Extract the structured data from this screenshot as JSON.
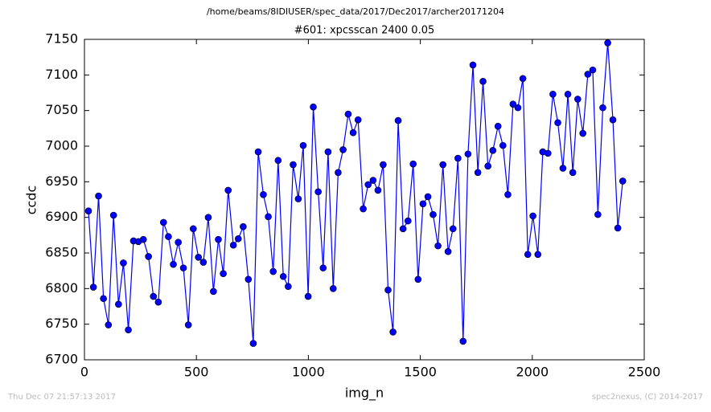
{
  "header": "/home/beams/8IDIUSER/spec_data/2017/Dec2017/archer20171204",
  "footer": {
    "left": "Thu Dec 07 21:57:13 2017",
    "right": "spec2nexus, (C) 2014-2017"
  },
  "chart_data": {
    "type": "line",
    "title": "#601: xpcsscan 2400 0.05",
    "x_label": "img_n",
    "y_label": "ccdc",
    "xlim": [
      0,
      2500
    ],
    "xticks": [
      0,
      500,
      1000,
      1500,
      2000,
      2500
    ],
    "ylim": [
      6700,
      7150
    ],
    "yticks": [
      6700,
      6750,
      6800,
      6850,
      6900,
      6950,
      7000,
      7050,
      7100,
      7150
    ],
    "grid": false,
    "marker": true,
    "x": [
      18,
      40,
      63,
      85,
      107,
      130,
      152,
      174,
      196,
      219,
      241,
      263,
      286,
      308,
      330,
      353,
      375,
      397,
      419,
      442,
      464,
      486,
      509,
      531,
      553,
      576,
      598,
      620,
      642,
      665,
      687,
      709,
      732,
      754,
      776,
      799,
      821,
      843,
      865,
      888,
      910,
      932,
      955,
      977,
      999,
      1022,
      1044,
      1066,
      1088,
      1111,
      1133,
      1155,
      1178,
      1200,
      1222,
      1245,
      1267,
      1289,
      1311,
      1334,
      1356,
      1378,
      1401,
      1423,
      1445,
      1468,
      1490,
      1512,
      1534,
      1557,
      1579,
      1601,
      1624,
      1646,
      1668,
      1691,
      1713,
      1735,
      1757,
      1780,
      1802,
      1824,
      1847,
      1869,
      1891,
      1914,
      1936,
      1958,
      1980,
      2003,
      2025,
      2047,
      2070,
      2092,
      2114,
      2137,
      2159,
      2181,
      2203,
      2226,
      2248,
      2270,
      2293,
      2315,
      2337,
      2360,
      2382,
      2404
    ],
    "series": [
      {
        "color": "#0000ff",
        "values": [
          6909,
          6802,
          6930,
          6786,
          6749,
          6903,
          6778,
          6836,
          6742,
          6867,
          6866,
          6869,
          6845,
          6789,
          6781,
          6893,
          6873,
          6834,
          6865,
          6829,
          6749,
          6884,
          6844,
          6837,
          6900,
          6796,
          6869,
          6821,
          6938,
          6861,
          6870,
          6887,
          6813,
          6723,
          6992,
          6932,
          6901,
          6824,
          6980,
          6817,
          6803,
          6974,
          6926,
          7001,
          6789,
          7055,
          6936,
          6829,
          6992,
          6800,
          6963,
          6995,
          7045,
          7019,
          7037,
          6912,
          6946,
          6952,
          6938,
          6974,
          6798,
          6739,
          7036,
          6884,
          6895,
          6975,
          6813,
          6919,
          6929,
          6904,
          6860,
          6974,
          6852,
          6884,
          6983,
          6726,
          6989,
          7114,
          6963,
          7091,
          6972,
          6994,
          7028,
          7001,
          6932,
          7059,
          7054,
          7095,
          6848,
          6902,
          6848,
          6992,
          6990,
          7073,
          7033,
          6969,
          7073,
          6963,
          7066,
          7018,
          7101,
          7107,
          6904,
          7054,
          7145,
          7037,
          6885,
          6951
        ]
      }
    ]
  }
}
